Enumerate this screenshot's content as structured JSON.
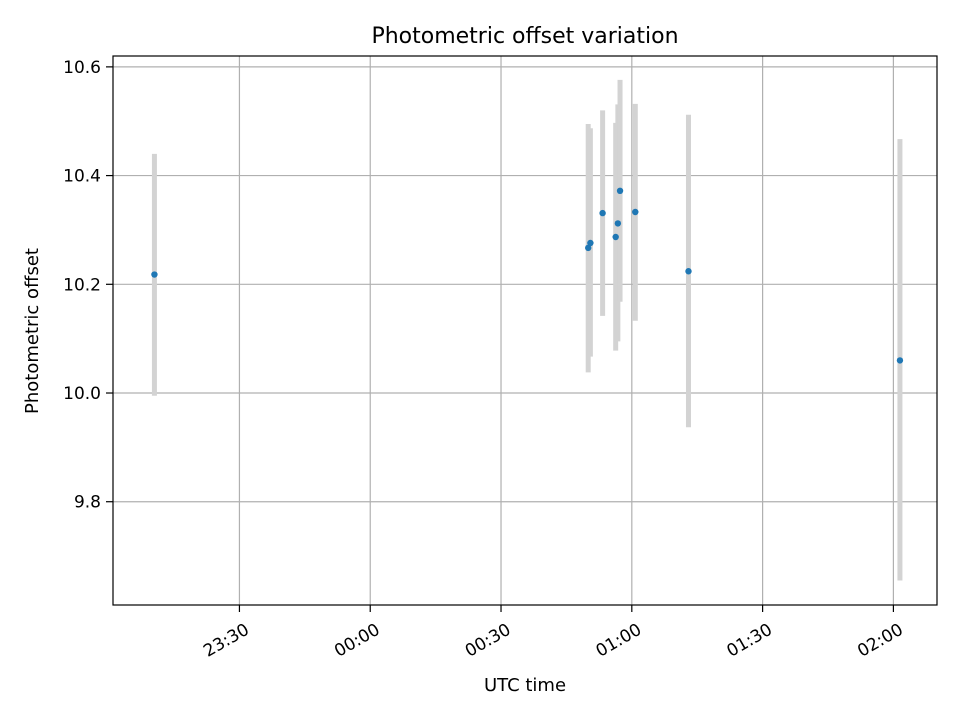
{
  "chart_data": {
    "type": "scatter",
    "title": "Photometric offset variation",
    "xlabel": "UTC time",
    "ylabel": "Photometric offset",
    "x_ticks": [
      "23:30",
      "00:00",
      "00:30",
      "01:00",
      "01:30",
      "02:00"
    ],
    "x_ticks_minutes": [
      -30,
      0,
      30,
      60,
      90,
      120
    ],
    "xlim_minutes": [
      -59,
      130
    ],
    "ylim": [
      9.61,
      10.62
    ],
    "y_ticks": [
      9.8,
      10.0,
      10.2,
      10.4,
      10.6
    ],
    "y_tick_labels": [
      "9.8",
      "10.0",
      "10.2",
      "10.4",
      "10.6"
    ],
    "grid": true,
    "colors": {
      "point": "#1f77b4",
      "errorbar": "#d3d3d3",
      "grid": "#b0b0b0"
    },
    "points": [
      {
        "t": "23:11",
        "x_minutes": -49.5,
        "y": 10.218,
        "ylow": 9.995,
        "yhigh": 10.44
      },
      {
        "t": "00:50",
        "x_minutes": 50.0,
        "y": 10.267,
        "ylow": 10.038,
        "yhigh": 10.495
      },
      {
        "t": "00:50",
        "x_minutes": 50.5,
        "y": 10.276,
        "ylow": 10.067,
        "yhigh": 10.487
      },
      {
        "t": "00:53",
        "x_minutes": 53.3,
        "y": 10.331,
        "ylow": 10.142,
        "yhigh": 10.52
      },
      {
        "t": "00:56",
        "x_minutes": 56.3,
        "y": 10.287,
        "ylow": 10.078,
        "yhigh": 10.497
      },
      {
        "t": "00:56",
        "x_minutes": 56.8,
        "y": 10.312,
        "ylow": 10.095,
        "yhigh": 10.531
      },
      {
        "t": "00:57",
        "x_minutes": 57.3,
        "y": 10.372,
        "ylow": 10.168,
        "yhigh": 10.576
      },
      {
        "t": "01:01",
        "x_minutes": 60.8,
        "y": 10.333,
        "ylow": 10.133,
        "yhigh": 10.532
      },
      {
        "t": "01:13",
        "x_minutes": 73.0,
        "y": 10.224,
        "ylow": 9.937,
        "yhigh": 10.512
      },
      {
        "t": "02:01",
        "x_minutes": 121.5,
        "y": 10.06,
        "ylow": 9.655,
        "yhigh": 10.467
      }
    ]
  }
}
